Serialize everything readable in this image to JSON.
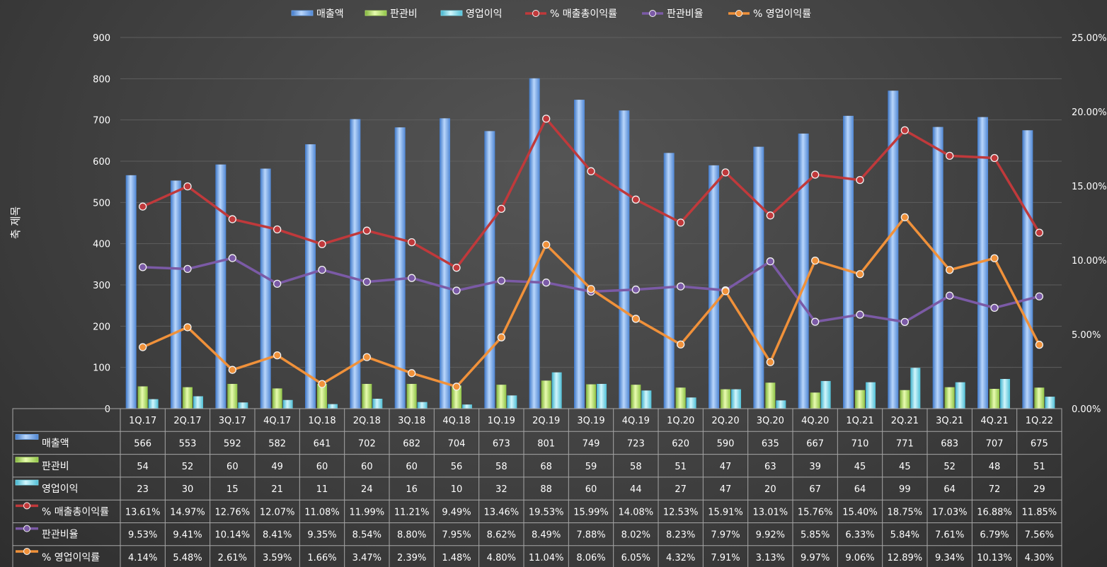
{
  "chart_data": {
    "type": "bar",
    "categories": [
      "1Q.17",
      "2Q.17",
      "3Q.17",
      "4Q.17",
      "1Q.18",
      "2Q.18",
      "3Q.18",
      "4Q.18",
      "1Q.19",
      "2Q.19",
      "3Q.19",
      "4Q.19",
      "1Q.20",
      "2Q.20",
      "3Q.20",
      "4Q.20",
      "1Q.21",
      "2Q.21",
      "3Q.21",
      "4Q.21",
      "1Q.22"
    ],
    "ylabel": "축 제목",
    "ylim": [
      0,
      900
    ],
    "y_ticks": [
      "0",
      "100",
      "200",
      "300",
      "400",
      "500",
      "600",
      "700",
      "800",
      "900"
    ],
    "y2lim": [
      0,
      25
    ],
    "y2_ticks": [
      "0.00%",
      "5.00%",
      "10.00%",
      "15.00%",
      "20.00%",
      "25.00%"
    ],
    "grid": true,
    "legend_position": "top",
    "series": [
      {
        "name": "매출액",
        "kind": "bar",
        "axis": "left",
        "color": "#6fa8f0",
        "values": [
          566,
          553,
          592,
          582,
          641,
          702,
          682,
          704,
          673,
          801,
          749,
          723,
          620,
          590,
          635,
          667,
          710,
          771,
          683,
          707,
          675
        ],
        "labels": [
          "566",
          "553",
          "592",
          "582",
          "641",
          "702",
          "682",
          "704",
          "673",
          "801",
          "749",
          "723",
          "620",
          "590",
          "635",
          "667",
          "710",
          "771",
          "683",
          "707",
          "675"
        ]
      },
      {
        "name": "판관비",
        "kind": "bar",
        "axis": "left",
        "color": "#b6e36a",
        "values": [
          54,
          52,
          60,
          49,
          60,
          60,
          60,
          56,
          58,
          68,
          59,
          58,
          51,
          47,
          63,
          39,
          45,
          45,
          52,
          48,
          51
        ],
        "labels": [
          "54",
          "52",
          "60",
          "49",
          "60",
          "60",
          "60",
          "56",
          "58",
          "68",
          "59",
          "58",
          "51",
          "47",
          "63",
          "39",
          "45",
          "45",
          "52",
          "48",
          "51"
        ]
      },
      {
        "name": "영업이익",
        "kind": "bar",
        "axis": "left",
        "color": "#7fdcee",
        "values": [
          23,
          30,
          15,
          21,
          11,
          24,
          16,
          10,
          32,
          88,
          60,
          44,
          27,
          47,
          20,
          67,
          64,
          99,
          64,
          72,
          29
        ],
        "labels": [
          "23",
          "30",
          "15",
          "21",
          "11",
          "24",
          "16",
          "10",
          "32",
          "88",
          "60",
          "44",
          "27",
          "47",
          "20",
          "67",
          "64",
          "99",
          "64",
          "72",
          "29"
        ]
      },
      {
        "name": "% 매출총이익률",
        "kind": "line",
        "axis": "right",
        "color": "#c0393b",
        "values": [
          13.61,
          14.97,
          12.76,
          12.07,
          11.08,
          11.99,
          11.21,
          9.49,
          13.46,
          19.53,
          15.99,
          14.08,
          12.53,
          15.91,
          13.01,
          15.76,
          15.4,
          18.75,
          17.03,
          16.88,
          11.85
        ],
        "labels": [
          "13.61%",
          "14.97%",
          "12.76%",
          "12.07%",
          "11.08%",
          "11.99%",
          "11.21%",
          "9.49%",
          "13.46%",
          "19.53%",
          "15.99%",
          "14.08%",
          "12.53%",
          "15.91%",
          "13.01%",
          "15.76%",
          "15.40%",
          "18.75%",
          "17.03%",
          "16.88%",
          "11.85%"
        ]
      },
      {
        "name": "판관비율",
        "kind": "line",
        "axis": "right",
        "color": "#7b5aa6",
        "values": [
          9.53,
          9.41,
          10.14,
          8.41,
          9.35,
          8.54,
          8.8,
          7.95,
          8.62,
          8.49,
          7.88,
          8.02,
          8.23,
          7.97,
          9.92,
          5.85,
          6.33,
          5.84,
          7.61,
          6.79,
          7.56
        ],
        "labels": [
          "9.53%",
          "9.41%",
          "10.14%",
          "8.41%",
          "9.35%",
          "8.54%",
          "8.80%",
          "7.95%",
          "8.62%",
          "8.49%",
          "7.88%",
          "8.02%",
          "8.23%",
          "7.97%",
          "9.92%",
          "5.85%",
          "6.33%",
          "5.84%",
          "7.61%",
          "6.79%",
          "7.56%"
        ]
      },
      {
        "name": "% 영업이익률",
        "kind": "line",
        "axis": "right",
        "color": "#f0913a",
        "values": [
          4.14,
          5.48,
          2.61,
          3.59,
          1.66,
          3.47,
          2.39,
          1.48,
          4.8,
          11.04,
          8.06,
          6.05,
          4.32,
          7.91,
          3.13,
          9.97,
          9.06,
          12.89,
          9.34,
          10.13,
          4.3
        ],
        "labels": [
          "4.14%",
          "5.48%",
          "2.61%",
          "3.59%",
          "1.66%",
          "3.47%",
          "2.39%",
          "1.48%",
          "4.80%",
          "11.04%",
          "8.06%",
          "6.05%",
          "4.32%",
          "7.91%",
          "3.13%",
          "9.97%",
          "9.06%",
          "12.89%",
          "9.34%",
          "10.13%",
          "4.30%"
        ]
      }
    ]
  }
}
